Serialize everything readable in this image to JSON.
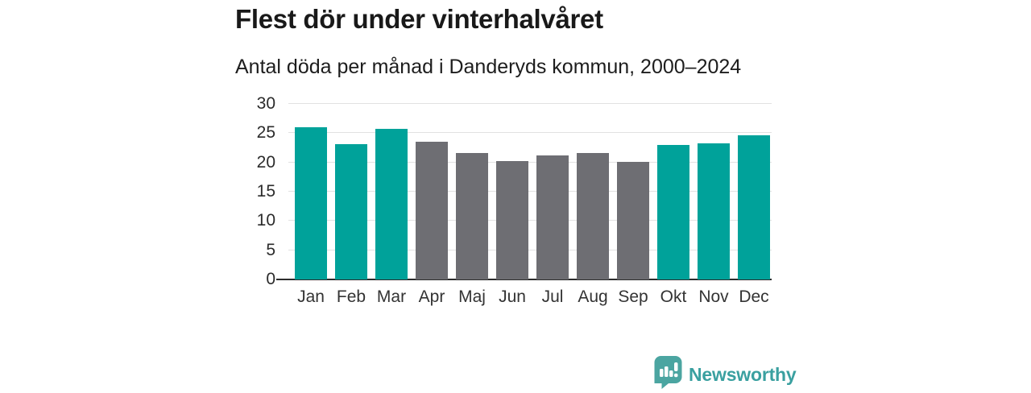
{
  "chart_data": {
    "type": "bar",
    "title": "Flest dör under vinterhalvåret",
    "subtitle": "Antal döda per månad i Danderyds kommun, 2000–2024",
    "categories": [
      "Jan",
      "Feb",
      "Mar",
      "Apr",
      "Maj",
      "Jun",
      "Jul",
      "Aug",
      "Sep",
      "Okt",
      "Nov",
      "Dec"
    ],
    "values": [
      26.0,
      23.1,
      25.8,
      23.5,
      21.6,
      20.2,
      21.2,
      21.6,
      20.1,
      23.0,
      23.3,
      24.7
    ],
    "bar_colors": [
      "teal",
      "teal",
      "teal",
      "gray",
      "gray",
      "gray",
      "gray",
      "gray",
      "gray",
      "teal",
      "teal",
      "teal"
    ],
    "colors": {
      "teal": "#00a29a",
      "gray": "#6e6e73"
    },
    "ylim": [
      0,
      30
    ],
    "yticks": [
      0,
      5,
      10,
      15,
      20,
      25,
      30
    ],
    "grid": "horizontal-only",
    "legend": "none",
    "xlabel": "",
    "ylabel": "",
    "axis_color": "#2d2d2d",
    "gridline_color": "#e2e2e2"
  },
  "branding": {
    "logo_text": "Newsworthy",
    "logo_icon": "bar-chart-speech-bubble",
    "logo_color": "#4ba5a1",
    "logo_text_color": "#3aa0a0"
  }
}
